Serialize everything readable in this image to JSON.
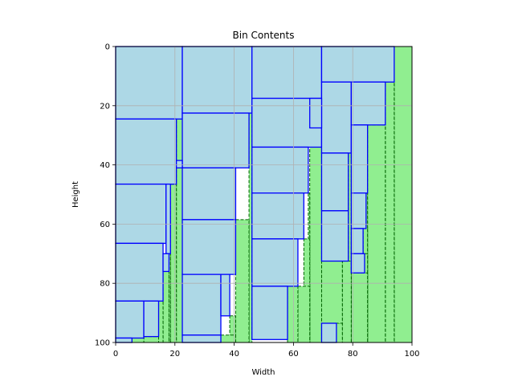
{
  "chart_data": {
    "type": "rectangle-packing",
    "title": "Bin Contents",
    "xlabel": "Width",
    "ylabel": "Height",
    "xlim": [
      0,
      100
    ],
    "ylim": [
      100,
      0
    ],
    "y_inverted": true,
    "grid": true,
    "xticks": [
      0,
      20,
      40,
      60,
      80,
      100
    ],
    "yticks": [
      0,
      20,
      40,
      60,
      80,
      100
    ],
    "xtick_labels": [
      "0",
      "20",
      "40",
      "60",
      "80",
      "100"
    ],
    "ytick_labels": [
      "0",
      "20",
      "40",
      "60",
      "80",
      "100"
    ],
    "colors": {
      "item_fill": "#add8e6",
      "item_edge": "#0000ff",
      "free_fill": "#90ee90",
      "free_edge": "#006400",
      "grid": "#b0b0b0"
    },
    "placed_items": [
      {
        "x": 0,
        "y": 0,
        "w": 22.5,
        "h": 24.5
      },
      {
        "x": 22.5,
        "y": 0,
        "w": 23.5,
        "h": 22.5
      },
      {
        "x": 46,
        "y": 0,
        "w": 23.5,
        "h": 17.5
      },
      {
        "x": 69.5,
        "y": 0,
        "w": 24.5,
        "h": 12
      },
      {
        "x": 0,
        "y": 24.5,
        "w": 20.5,
        "h": 22
      },
      {
        "x": 22.5,
        "y": 22.5,
        "w": 22.5,
        "h": 18.5
      },
      {
        "x": 46,
        "y": 17.5,
        "w": 23.5,
        "h": 16.5
      },
      {
        "x": 69.5,
        "y": 12,
        "w": 10,
        "h": 24
      },
      {
        "x": 79.5,
        "y": 12,
        "w": 11.5,
        "h": 14.5
      },
      {
        "x": 65.5,
        "y": 17.5,
        "w": 4,
        "h": 10
      },
      {
        "x": 20.5,
        "y": 38.5,
        "w": 2,
        "h": 2.5
      },
      {
        "x": 0,
        "y": 46.5,
        "w": 17,
        "h": 20
      },
      {
        "x": 22.5,
        "y": 41,
        "w": 18,
        "h": 17.5
      },
      {
        "x": 46,
        "y": 34,
        "w": 19,
        "h": 15.5
      },
      {
        "x": 69.5,
        "y": 36,
        "w": 9,
        "h": 19.5
      },
      {
        "x": 79.5,
        "y": 26.5,
        "w": 5.5,
        "h": 23
      },
      {
        "x": 0,
        "y": 66.5,
        "w": 16,
        "h": 19.5
      },
      {
        "x": 22.5,
        "y": 58.5,
        "w": 18,
        "h": 18.5
      },
      {
        "x": 46,
        "y": 49.5,
        "w": 17.5,
        "h": 15.5
      },
      {
        "x": 69.5,
        "y": 55.5,
        "w": 9,
        "h": 17
      },
      {
        "x": 79.5,
        "y": 49.5,
        "w": 5,
        "h": 12
      },
      {
        "x": 79.5,
        "y": 61.5,
        "w": 4,
        "h": 8.5
      },
      {
        "x": 17,
        "y": 46.5,
        "w": 1.5,
        "h": 23.5
      },
      {
        "x": 16,
        "y": 70,
        "w": 2,
        "h": 6
      },
      {
        "x": 46,
        "y": 65,
        "w": 15.5,
        "h": 16
      },
      {
        "x": 22.5,
        "y": 77,
        "w": 13,
        "h": 20.5
      },
      {
        "x": 35.5,
        "y": 77,
        "w": 3,
        "h": 14
      },
      {
        "x": 0,
        "y": 86,
        "w": 9.5,
        "h": 12.5
      },
      {
        "x": 9.5,
        "y": 86,
        "w": 5,
        "h": 12
      },
      {
        "x": 46,
        "y": 81,
        "w": 12,
        "h": 18
      },
      {
        "x": 69.5,
        "y": 93.5,
        "w": 5,
        "h": 6.5
      },
      {
        "x": 79.5,
        "y": 70,
        "w": 4.5,
        "h": 6.5
      },
      {
        "x": 22.5,
        "y": 97.5,
        "w": 13,
        "h": 2.5
      },
      {
        "x": 0,
        "y": 98.5,
        "w": 5.5,
        "h": 1.5
      }
    ],
    "free_spaces": [
      {
        "x": 94,
        "y": 0,
        "w": 6,
        "h": 100
      },
      {
        "x": 91,
        "y": 12,
        "w": 3,
        "h": 88
      },
      {
        "x": 85,
        "y": 26.5,
        "w": 6,
        "h": 73.5
      },
      {
        "x": 84.5,
        "y": 49.5,
        "w": 0.5,
        "h": 50.5
      },
      {
        "x": 83.5,
        "y": 61.5,
        "w": 1.5,
        "h": 38.5
      },
      {
        "x": 84,
        "y": 70,
        "w": 1,
        "h": 30
      },
      {
        "x": 79.5,
        "y": 76.5,
        "w": 5.5,
        "h": 23.5
      },
      {
        "x": 78.5,
        "y": 36,
        "w": 1,
        "h": 64
      },
      {
        "x": 76.5,
        "y": 72.5,
        "w": 3,
        "h": 27.5
      },
      {
        "x": 74.5,
        "y": 93.5,
        "w": 2,
        "h": 6.5
      },
      {
        "x": 69.5,
        "y": 72.5,
        "w": 7,
        "h": 21
      },
      {
        "x": 65.5,
        "y": 27.5,
        "w": 4,
        "h": 72.5
      },
      {
        "x": 65,
        "y": 49.5,
        "w": 0.5,
        "h": 50.5
      },
      {
        "x": 63.5,
        "y": 65,
        "w": 2,
        "h": 35
      },
      {
        "x": 61.5,
        "y": 81,
        "w": 4,
        "h": 19
      },
      {
        "x": 58,
        "y": 81,
        "w": 3.5,
        "h": 19
      },
      {
        "x": 45,
        "y": 22.5,
        "w": 1,
        "h": 77.5
      },
      {
        "x": 40.5,
        "y": 58.5,
        "w": 4.5,
        "h": 41.5
      },
      {
        "x": 38.5,
        "y": 91,
        "w": 2,
        "h": 9
      },
      {
        "x": 35.5,
        "y": 97.5,
        "w": 5,
        "h": 2.5
      },
      {
        "x": 22.5,
        "y": 41,
        "w": 0.5,
        "h": 59
      },
      {
        "x": 20.5,
        "y": 22.5,
        "w": 2,
        "h": 16
      },
      {
        "x": 20.5,
        "y": 41,
        "w": 2,
        "h": 59
      },
      {
        "x": 18.5,
        "y": 46.5,
        "w": 2,
        "h": 53.5
      },
      {
        "x": 18,
        "y": 70,
        "w": 0.5,
        "h": 30
      },
      {
        "x": 16,
        "y": 76,
        "w": 2,
        "h": 24
      },
      {
        "x": 14.5,
        "y": 86,
        "w": 1.5,
        "h": 14
      },
      {
        "x": 9.5,
        "y": 98,
        "w": 5,
        "h": 2
      },
      {
        "x": 5.5,
        "y": 98.5,
        "w": 4,
        "h": 1.5
      }
    ]
  }
}
